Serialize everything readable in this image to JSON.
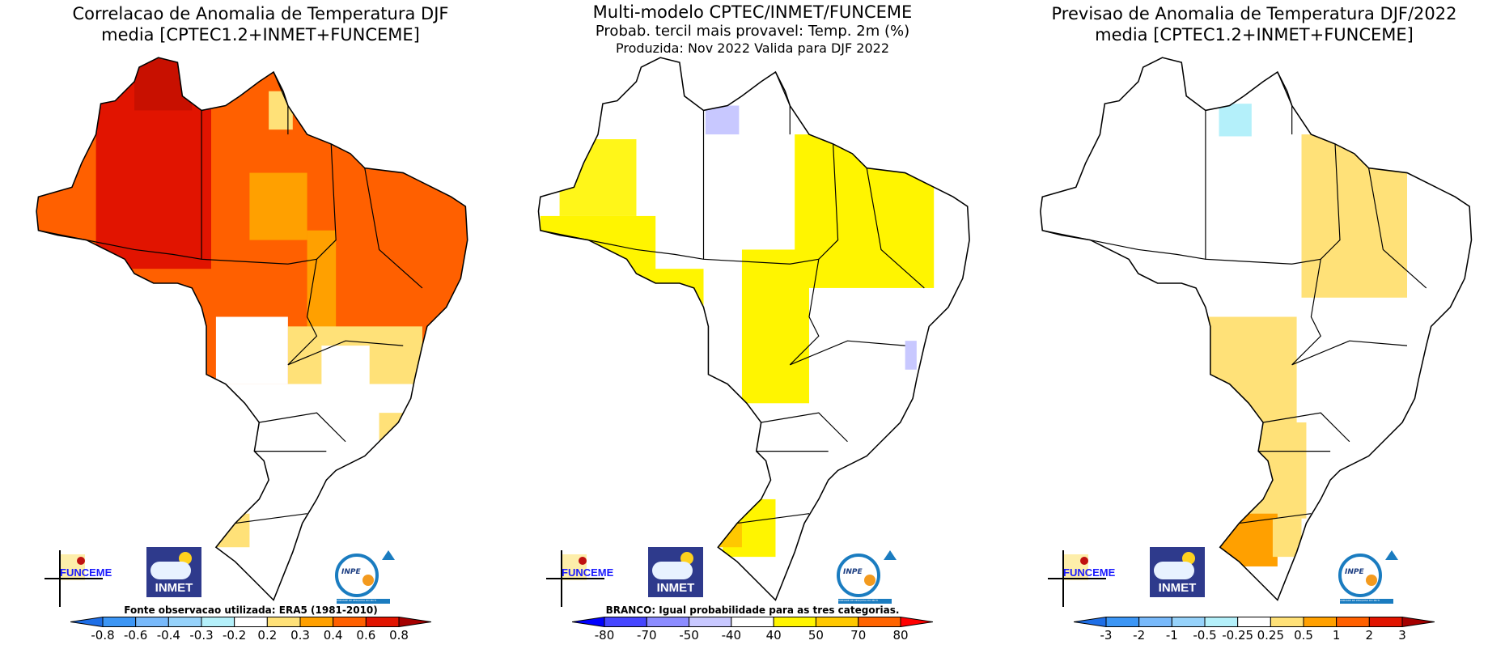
{
  "panels": [
    {
      "title_lines": [
        "Correlacao de Anomalia de Temperatura DJF",
        "media [CPTEC1.2+INMET+FUNCEME]"
      ],
      "colorbar_label": "Fonte observacao utilizada: ERA5 (1981-2010)",
      "colorbar": {
        "ticks": [
          "-0.8",
          "-0.6",
          "-0.4",
          "-0.3",
          "-0.2",
          "0.2",
          "0.3",
          "0.4",
          "0.6",
          "0.8"
        ],
        "colors": [
          "#1e6ee6",
          "#3c96f5",
          "#78b9fa",
          "#96d2fa",
          "#b4f0fa",
          "#ffffff",
          "#ffe178",
          "#ffa000",
          "#ff6000",
          "#e11400",
          "#a50000"
        ]
      }
    },
    {
      "title_lines": [
        "Multi-modelo CPTEC/INMET/FUNCEME",
        "Probab. tercil mais provavel: Temp. 2m (%)",
        "Produzida: Nov 2022  Valida para DJF 2022"
      ],
      "colorbar_label": "BRANCO: Igual probabilidade para as tres categorias.",
      "colorbar": {
        "ticks": [
          "-80",
          "-70",
          "-50",
          "-40",
          "40",
          "50",
          "70",
          "80"
        ],
        "colors": [
          "#0000ff",
          "#4646ff",
          "#8c8cff",
          "#c8c8ff",
          "#ffffff",
          "#fff500",
          "#ffc800",
          "#ff6400",
          "#ff0000"
        ]
      }
    },
    {
      "title_lines": [
        "Previsao de Anomalia de Temperatura DJF/2022",
        "media [CPTEC1.2+INMET+FUNCEME]"
      ],
      "colorbar_label": "",
      "colorbar": {
        "ticks": [
          "-3",
          "-2",
          "-1",
          "-0.5",
          "-0.25",
          "0.25",
          "0.5",
          "1",
          "2",
          "3"
        ],
        "colors": [
          "#1e6ee6",
          "#3c96f5",
          "#78b9fa",
          "#96d2fa",
          "#b4f0fa",
          "#ffffff",
          "#ffe178",
          "#ffa000",
          "#ff6000",
          "#e11400",
          "#a50000"
        ]
      }
    }
  ],
  "logos": {
    "funceme": "FUNCEME",
    "inmet": "INMET",
    "inpe": "INPE",
    "inpe_sub": "UNIDADE DE PESQUISA DO MCTI"
  }
}
